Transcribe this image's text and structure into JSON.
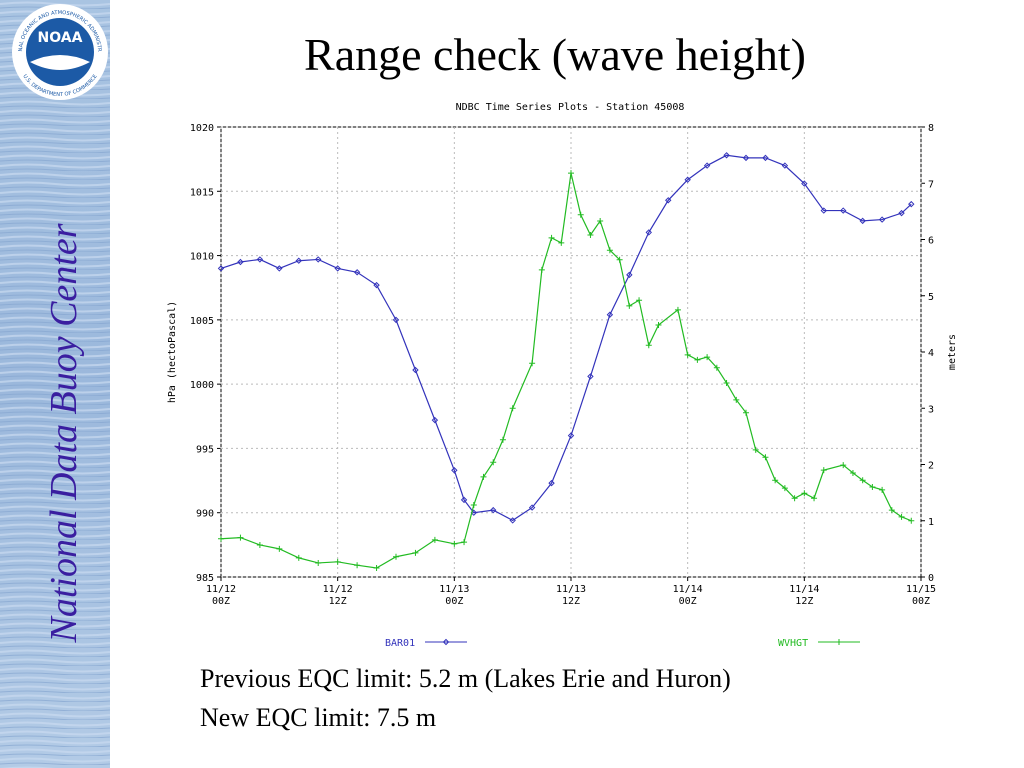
{
  "slide": {
    "title": "Range check (wave height)",
    "sidebar": "National Data Buoy Center",
    "logo": {
      "name": "NOAA",
      "ring_top": "NATIONAL OCEANIC AND ATMOSPHERIC ADMINISTRATION",
      "ring_bottom": "U.S. DEPARTMENT OF COMMERCE"
    },
    "notes": [
      "Previous EQC limit: 5.2 m (Lakes Erie and Huron)",
      "New EQC limit: 7.5 m"
    ]
  },
  "chart_data": {
    "type": "line",
    "title": "NDBC Time Series Plots - Station 45008",
    "ylabel": "hPa (hectoPascal)",
    "y2label": "meters",
    "xlim": [
      0,
      72
    ],
    "xticks": [
      {
        "value": 0,
        "label": "11/12\n00Z"
      },
      {
        "value": 12,
        "label": "11/12\n12Z"
      },
      {
        "value": 24,
        "label": "11/13\n00Z"
      },
      {
        "value": 36,
        "label": "11/13\n12Z"
      },
      {
        "value": 48,
        "label": "11/14\n00Z"
      },
      {
        "value": 60,
        "label": "11/14\n12Z"
      },
      {
        "value": 72,
        "label": "11/15\n00Z"
      }
    ],
    "ylim": [
      985,
      1020
    ],
    "yticks": [
      985,
      990,
      995,
      1000,
      1005,
      1010,
      1015,
      1020
    ],
    "y2lim": [
      0,
      8
    ],
    "y2ticks": [
      0,
      1,
      2,
      3,
      4,
      5,
      6,
      7,
      8
    ],
    "grid": true,
    "series": [
      {
        "name": "BAR01",
        "color": "#3333bb",
        "marker": "diamond",
        "x": [
          0,
          2,
          4,
          6,
          8,
          10,
          12,
          14,
          16,
          18,
          20,
          22,
          24,
          25,
          26,
          28,
          30,
          32,
          34,
          36,
          38,
          40,
          42,
          44,
          46,
          48,
          50,
          52,
          54,
          56,
          58,
          60,
          62,
          64,
          66,
          68,
          70,
          71
        ],
        "values": [
          1009.0,
          1009.5,
          1009.7,
          1009.0,
          1009.6,
          1009.7,
          1009.0,
          1008.7,
          1007.7,
          1005.0,
          1001.1,
          997.2,
          993.3,
          991.0,
          990.0,
          990.2,
          989.4,
          990.4,
          992.3,
          996.0,
          1000.6,
          1005.4,
          1008.5,
          1011.8,
          1014.3,
          1015.9,
          1017.0,
          1017.8,
          1017.6,
          1017.6,
          1017.0,
          1015.6,
          1013.5,
          1013.5,
          1012.7,
          1012.8,
          1013.3,
          1014.0
        ]
      },
      {
        "name": "WVHGT",
        "color": "#22bb22",
        "marker": "plus",
        "axis": "y2",
        "x": [
          0,
          2,
          4,
          6,
          8,
          10,
          12,
          14,
          16,
          18,
          20,
          22,
          24,
          25,
          26,
          27,
          28,
          29,
          30,
          32,
          33,
          34,
          35,
          36,
          37,
          38,
          39,
          40,
          41,
          42,
          43,
          44,
          45,
          47,
          48,
          49,
          50,
          51,
          52,
          53,
          54,
          55,
          56,
          57,
          58,
          59,
          60,
          61,
          62,
          64,
          65,
          66,
          67,
          68,
          69,
          70,
          71
        ],
        "values": [
          0.68,
          0.7,
          0.57,
          0.5,
          0.34,
          0.25,
          0.27,
          0.21,
          0.16,
          0.36,
          0.43,
          0.66,
          0.59,
          0.62,
          1.28,
          1.78,
          2.04,
          2.44,
          3.0,
          3.8,
          5.46,
          6.03,
          5.94,
          7.18,
          6.44,
          6.08,
          6.33,
          5.81,
          5.64,
          4.82,
          4.92,
          4.12,
          4.48,
          4.75,
          3.95,
          3.86,
          3.91,
          3.72,
          3.45,
          3.15,
          2.92,
          2.26,
          2.13,
          1.72,
          1.58,
          1.4,
          1.49,
          1.4,
          1.9,
          1.99,
          1.85,
          1.72,
          1.6,
          1.55,
          1.19,
          1.07,
          1.0
        ]
      }
    ]
  }
}
